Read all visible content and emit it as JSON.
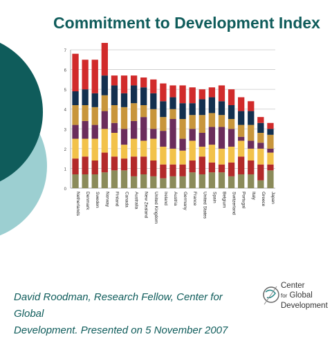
{
  "slide": {
    "title": "Commitment to Development Index",
    "footer_line1": "David Roodman, Research Fellow, Center for Global",
    "footer_line2": "Development. Presented on 5 November 2007",
    "logo_lines": [
      "Center",
      "Global",
      "Development"
    ],
    "logo_connector": "for",
    "colors": {
      "title": "#0f5c5b",
      "circle_dark": "#0f5c5b",
      "circle_light": "#9ccfd1"
    }
  },
  "chart_data": {
    "type": "bar",
    "stacked": true,
    "ylim": [
      0,
      7
    ],
    "yticks": [
      0,
      1,
      2,
      3,
      4,
      5,
      6,
      7
    ],
    "grid": true,
    "categories": [
      "Netherlands",
      "Denmark",
      "Sweden",
      "Norway",
      "Finland",
      "Canada",
      "Australia",
      "New Zealand",
      "United Kingdom",
      "Ireland",
      "Austria",
      "Germany",
      "France",
      "United States",
      "Spain",
      "Belgium",
      "Switzerland",
      "Portugal",
      "Italy",
      "Greece",
      "Japan"
    ],
    "series": [
      {
        "color": "#8b8b5a",
        "values": [
          0.7,
          0.7,
          0.7,
          0.8,
          0.9,
          0.9,
          0.6,
          0.7,
          0.6,
          0.5,
          0.6,
          0.6,
          0.8,
          0.7,
          0.8,
          0.8,
          0.6,
          0.7,
          0.7,
          0.4,
          0.9
        ]
      },
      {
        "color": "#b32a2a",
        "values": [
          0.8,
          0.9,
          0.7,
          1.0,
          0.7,
          0.6,
          1.0,
          0.9,
          0.8,
          0.7,
          0.6,
          0.6,
          0.6,
          0.9,
          0.5,
          0.4,
          0.7,
          0.9,
          0.7,
          0.8,
          0.3
        ]
      },
      {
        "color": "#f2c24a",
        "values": [
          1.0,
          0.9,
          1.1,
          1.2,
          1.2,
          0.7,
          0.9,
          0.8,
          1.1,
          0.9,
          0.8,
          0.7,
          1.0,
          0.5,
          0.9,
          0.8,
          0.8,
          0.8,
          0.6,
          0.8,
          0.6
        ]
      },
      {
        "color": "#6b2d5c",
        "values": [
          0.7,
          0.9,
          0.7,
          0.9,
          0.5,
          0.8,
          0.9,
          1.2,
          0.5,
          0.8,
          1.5,
          0.6,
          0.6,
          0.7,
          0.9,
          1.1,
          0.9,
          0.2,
          0.4,
          0.3,
          0.2
        ]
      },
      {
        "color": "#c8963c",
        "values": [
          1.0,
          0.8,
          0.9,
          0.8,
          0.9,
          1.1,
          0.9,
          0.6,
          1.0,
          0.7,
          0.5,
          1.0,
          0.7,
          0.9,
          0.7,
          0.6,
          0.5,
          0.6,
          0.8,
          0.5,
          0.7
        ]
      },
      {
        "color": "#13304f",
        "values": [
          0.7,
          0.8,
          0.7,
          1.0,
          1.0,
          0.7,
          0.9,
          0.9,
          0.8,
          0.8,
          0.6,
          0.8,
          0.6,
          0.8,
          0.8,
          0.7,
          0.7,
          0.7,
          0.7,
          0.5,
          0.3
        ]
      },
      {
        "color": "#d12b2b",
        "values": [
          1.9,
          1.5,
          1.7,
          1.8,
          0.5,
          0.9,
          0.5,
          0.5,
          0.7,
          0.9,
          0.6,
          0.9,
          0.8,
          0.5,
          0.5,
          0.8,
          0.8,
          0.7,
          0.5,
          0.3,
          0.3
        ]
      }
    ]
  }
}
